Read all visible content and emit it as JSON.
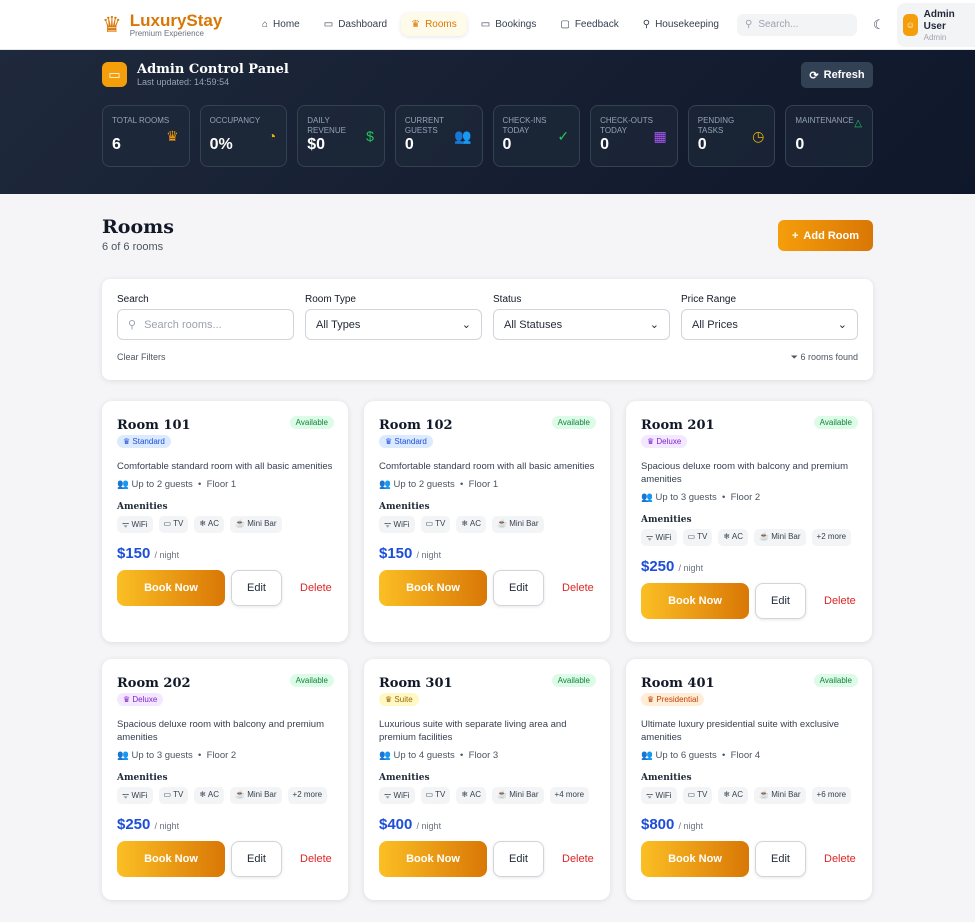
{
  "nav": {
    "brand": "LuxuryStay",
    "tagline": "Premium Experience",
    "items": [
      {
        "label": "Home",
        "icon": "⌂"
      },
      {
        "label": "Dashboard",
        "icon": "▭"
      },
      {
        "label": "Rooms",
        "icon": "♛",
        "active": true
      },
      {
        "label": "Bookings",
        "icon": "▭"
      },
      {
        "label": "Feedback",
        "icon": "▢"
      },
      {
        "label": "Housekeeping",
        "icon": "⚲"
      }
    ],
    "search_placeholder": "Search...",
    "user": {
      "name": "Admin User",
      "role": "Admin"
    }
  },
  "hero": {
    "title": "Admin Control Panel",
    "updated": "Last updated: 14:59:54",
    "refresh": "Refresh",
    "stats": [
      {
        "label": "Total Rooms",
        "value": "6",
        "icon": "♛",
        "color": "#f59e0b"
      },
      {
        "label": "Occupancy",
        "value": "0%",
        "icon": "◔",
        "color": "#eab308"
      },
      {
        "label": "Daily Revenue",
        "value": "$0",
        "icon": "$",
        "color": "#22c55e"
      },
      {
        "label": "Current Guests",
        "value": "0",
        "icon": "👥",
        "color": "#3b82f6"
      },
      {
        "label": "Check-ins Today",
        "value": "0",
        "icon": "✓",
        "color": "#22c55e"
      },
      {
        "label": "Check-outs Today",
        "value": "0",
        "icon": "▦",
        "color": "#a855f7"
      },
      {
        "label": "Pending Tasks",
        "value": "0",
        "icon": "◷",
        "color": "#eab308"
      },
      {
        "label": "Maintenance",
        "value": "0",
        "icon": "△",
        "color": "#22c55e"
      }
    ]
  },
  "page": {
    "title": "Rooms",
    "count": "6 of 6 rooms",
    "add": "Add Room"
  },
  "filters": {
    "search_label": "Search",
    "search_placeholder": "Search rooms...",
    "type_label": "Room Type",
    "type_value": "All Types",
    "status_label": "Status",
    "status_value": "All Statuses",
    "price_label": "Price Range",
    "price_value": "All Prices",
    "clear": "Clear Filters",
    "found": "6 rooms found"
  },
  "labels": {
    "amenities": "Amenities",
    "book": "Book Now",
    "edit": "Edit",
    "delete": "Delete",
    "per_night": "/ night"
  },
  "rooms": [
    {
      "name": "Room 101",
      "status": "Available",
      "type": "Standard",
      "desc": "Comfortable standard room with all basic amenities",
      "guests": "Up to 2 guests",
      "floor": "Floor 1",
      "amenities": [
        "WiFi",
        "TV",
        "AC",
        "Mini Bar"
      ],
      "price": "$150"
    },
    {
      "name": "Room 102",
      "status": "Available",
      "type": "Standard",
      "desc": "Comfortable standard room with all basic amenities",
      "guests": "Up to 2 guests",
      "floor": "Floor 1",
      "amenities": [
        "WiFi",
        "TV",
        "AC",
        "Mini Bar"
      ],
      "price": "$150"
    },
    {
      "name": "Room 201",
      "status": "Available",
      "type": "Deluxe",
      "desc": "Spacious deluxe room with balcony and premium amenities",
      "guests": "Up to 3 guests",
      "floor": "Floor 2",
      "amenities": [
        "WiFi",
        "TV",
        "AC",
        "Mini Bar",
        "+2 more"
      ],
      "price": "$250"
    },
    {
      "name": "Room 202",
      "status": "Available",
      "type": "Deluxe",
      "desc": "Spacious deluxe room with balcony and premium amenities",
      "guests": "Up to 3 guests",
      "floor": "Floor 2",
      "amenities": [
        "WiFi",
        "TV",
        "AC",
        "Mini Bar",
        "+2 more"
      ],
      "price": "$250"
    },
    {
      "name": "Room 301",
      "status": "Available",
      "type": "Suite",
      "desc": "Luxurious suite with separate living area and premium facilities",
      "guests": "Up to 4 guests",
      "floor": "Floor 3",
      "amenities": [
        "WiFi",
        "TV",
        "AC",
        "Mini Bar",
        "+4 more"
      ],
      "price": "$400"
    },
    {
      "name": "Room 401",
      "status": "Available",
      "type": "Presidential",
      "desc": "Ultimate luxury presidential suite with exclusive amenities",
      "guests": "Up to 6 guests",
      "floor": "Floor 4",
      "amenities": [
        "WiFi",
        "TV",
        "AC",
        "Mini Bar",
        "+6 more"
      ],
      "price": "$800"
    }
  ],
  "type_colors": {
    "Standard": [
      "#dbeafe",
      "#1d4ed8"
    ],
    "Deluxe": [
      "#f3e8ff",
      "#7e22ce"
    ],
    "Suite": [
      "#fef9c3",
      "#a16207"
    ],
    "Presidential": [
      "#ffedd5",
      "#c2410c"
    ]
  }
}
